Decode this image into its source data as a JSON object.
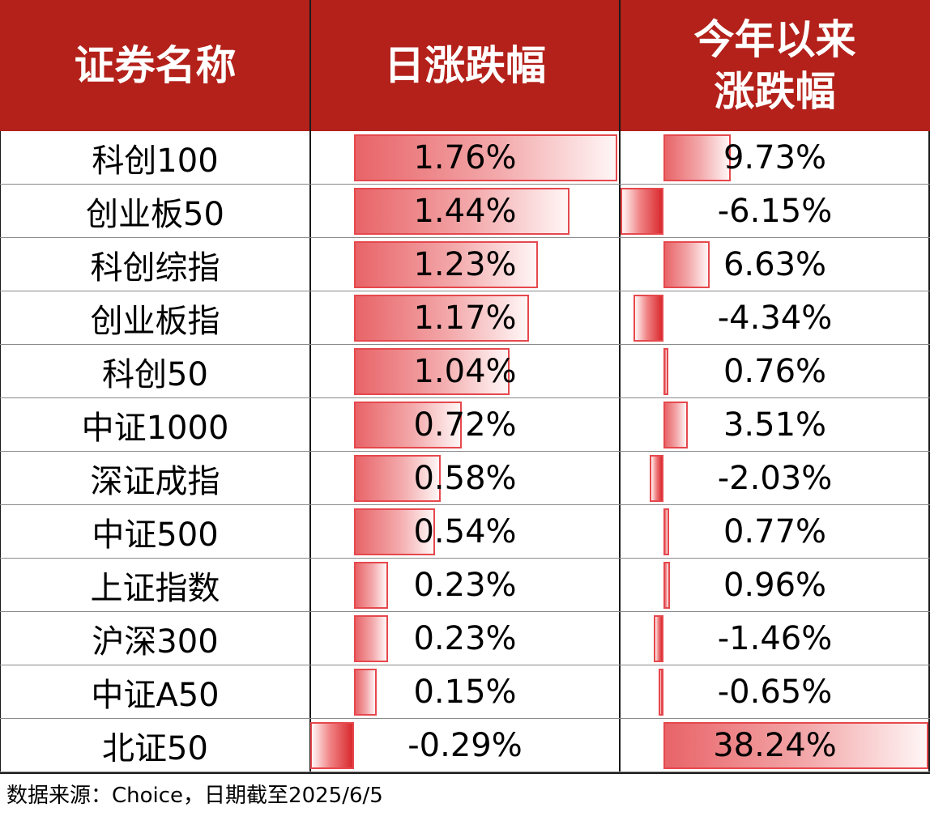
{
  "chart_data": {
    "type": "table",
    "columns": [
      "证券名称",
      "日涨跌幅",
      "今年以来",
      "涨跌幅"
    ],
    "rows": [
      {
        "name": "科创100",
        "daily": 1.76,
        "daily_label": "1.76%",
        "ytd": 9.73,
        "ytd_label": "9.73%"
      },
      {
        "name": "创业板50",
        "daily": 1.44,
        "daily_label": "1.44%",
        "ytd": -6.15,
        "ytd_label": "-6.15%"
      },
      {
        "name": "科创综指",
        "daily": 1.23,
        "daily_label": "1.23%",
        "ytd": 6.63,
        "ytd_label": "6.63%"
      },
      {
        "name": "创业板指",
        "daily": 1.17,
        "daily_label": "1.17%",
        "ytd": -4.34,
        "ytd_label": "-4.34%"
      },
      {
        "name": "科创50",
        "daily": 1.04,
        "daily_label": "1.04%",
        "ytd": 0.76,
        "ytd_label": "0.76%"
      },
      {
        "name": "中证1000",
        "daily": 0.72,
        "daily_label": "0.72%",
        "ytd": 3.51,
        "ytd_label": "3.51%"
      },
      {
        "name": "深证成指",
        "daily": 0.58,
        "daily_label": "0.58%",
        "ytd": -2.03,
        "ytd_label": "-2.03%"
      },
      {
        "name": "中证500",
        "daily": 0.54,
        "daily_label": "0.54%",
        "ytd": 0.77,
        "ytd_label": "0.77%"
      },
      {
        "name": "上证指数",
        "daily": 0.23,
        "daily_label": "0.23%",
        "ytd": 0.96,
        "ytd_label": "0.96%"
      },
      {
        "name": "沪深300",
        "daily": 0.23,
        "daily_label": "0.23%",
        "ytd": -1.46,
        "ytd_label": "-1.46%"
      },
      {
        "name": "中证A50",
        "daily": 0.15,
        "daily_label": "0.15%",
        "ytd": -0.65,
        "ytd_label": "-0.65%"
      },
      {
        "name": "北证50",
        "daily": -0.29,
        "daily_label": "-0.29%",
        "ytd": 38.24,
        "ytd_label": "38.24%"
      }
    ],
    "colors": {
      "header_bg": "#B3211A",
      "header_text": "#FFFFFF",
      "bar_border": "#E5484D",
      "bar_fill": "#E86468"
    }
  },
  "footer": {
    "source": "数据来源：Choice，日期截至2025/6/5"
  }
}
